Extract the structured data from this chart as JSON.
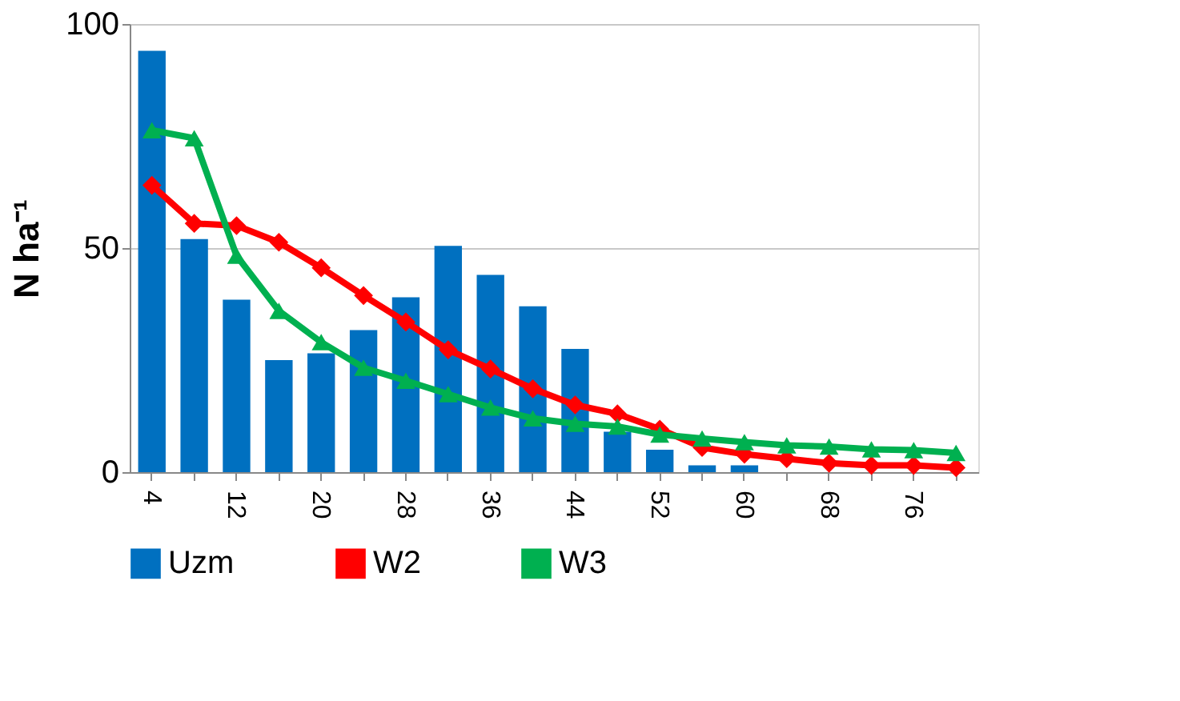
{
  "chart_data": {
    "type": "bar",
    "ylabel": "N ha⁻¹",
    "categories": [
      "4",
      null,
      "12",
      null,
      "20",
      null,
      "28",
      null,
      "36",
      null,
      "44",
      null,
      "52",
      null,
      "60",
      null,
      "68",
      null,
      "76",
      null
    ],
    "ylim": [
      0,
      100
    ],
    "yticks": [
      0,
      50,
      100
    ],
    "grid": "y",
    "legend": "bottom",
    "series": [
      {
        "name": "Uzm",
        "color": "#0070c0",
        "values": [
          94,
          52,
          38.5,
          25,
          26.5,
          31.7,
          39,
          50.5,
          44,
          37,
          27.5,
          9,
          5,
          1.5,
          1.5,
          0,
          0,
          0,
          0,
          0
        ]
      },
      {
        "name": "W2",
        "type": "line",
        "marker": "diamond",
        "color": "#ff0000",
        "values": [
          64,
          55.5,
          55,
          51.3,
          45.6,
          39.4,
          33.5,
          27.3,
          23,
          18.6,
          15,
          13,
          9.6,
          5.5,
          4,
          3,
          2,
          1.5,
          1.5,
          1
        ]
      },
      {
        "name": "W3",
        "type": "line",
        "marker": "triangle",
        "color": "#00b050",
        "values": [
          76.3,
          74.5,
          48.3,
          36,
          29,
          23.3,
          20.4,
          17.4,
          14.4,
          12,
          10.8,
          10.2,
          8.4,
          7.5,
          6.7,
          6,
          5.7,
          5.1,
          4.9,
          4.3
        ]
      }
    ]
  }
}
